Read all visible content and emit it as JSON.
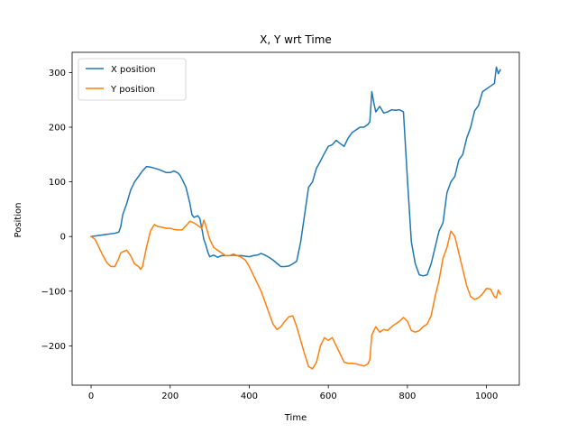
{
  "chart_data": {
    "type": "line",
    "title": "X, Y wrt Time",
    "xlabel": "Time",
    "ylabel": "Position",
    "xlim": [
      -48,
      1083
    ],
    "ylim": [
      -272,
      337
    ],
    "xticks": [
      0,
      200,
      400,
      600,
      800,
      1000
    ],
    "yticks": [
      -200,
      -100,
      0,
      100,
      200,
      300
    ],
    "xtick_labels": [
      "0",
      "200",
      "400",
      "600",
      "800",
      "1000"
    ],
    "ytick_labels": [
      "−200",
      "−100",
      "0",
      "100",
      "200",
      "300"
    ],
    "grid": false,
    "legend": "top-left",
    "series": [
      {
        "name": "X position",
        "color": "#1f77b4",
        "x": [
          0,
          20,
          40,
          60,
          70,
          75,
          80,
          90,
          100,
          110,
          120,
          130,
          140,
          150,
          160,
          170,
          180,
          190,
          200,
          210,
          220,
          225,
          230,
          240,
          250,
          255,
          260,
          270,
          275,
          280,
          285,
          290,
          295,
          300,
          310,
          320,
          330,
          340,
          350,
          360,
          370,
          380,
          390,
          400,
          410,
          420,
          430,
          440,
          450,
          460,
          470,
          480,
          490,
          500,
          510,
          520,
          530,
          540,
          550,
          560,
          570,
          580,
          590,
          600,
          610,
          620,
          630,
          640,
          650,
          660,
          670,
          680,
          690,
          700,
          705,
          710,
          715,
          720,
          730,
          740,
          750,
          760,
          770,
          780,
          790,
          800,
          810,
          820,
          830,
          840,
          850,
          860,
          870,
          880,
          890,
          900,
          910,
          920,
          930,
          940,
          950,
          960,
          970,
          980,
          990,
          1000,
          1010,
          1020,
          1025,
          1030,
          1035
        ],
        "y": [
          0,
          2,
          4,
          6,
          8,
          18,
          40,
          60,
          85,
          100,
          110,
          120,
          128,
          127,
          125,
          123,
          120,
          117,
          117,
          120,
          116,
          112,
          105,
          90,
          60,
          40,
          35,
          38,
          33,
          15,
          -5,
          -15,
          -28,
          -37,
          -34,
          -38,
          -35,
          -35,
          -35,
          -34,
          -35,
          -35,
          -36,
          -37,
          -35,
          -34,
          -31,
          -34,
          -38,
          -43,
          -49,
          -55,
          -55,
          -54,
          -50,
          -45,
          -10,
          40,
          90,
          100,
          125,
          138,
          152,
          165,
          168,
          176,
          170,
          165,
          180,
          190,
          195,
          200,
          200,
          205,
          210,
          265,
          245,
          228,
          238,
          226,
          228,
          232,
          231,
          232,
          228,
          105,
          -10,
          -50,
          -70,
          -72,
          -70,
          -50,
          -20,
          10,
          25,
          80,
          100,
          110,
          140,
          150,
          180,
          200,
          230,
          240,
          265,
          270,
          275,
          280,
          310,
          298,
          305
        ]
      },
      {
        "name": "Y position",
        "color": "#ff7f0e",
        "x": [
          0,
          10,
          20,
          30,
          40,
          50,
          60,
          70,
          75,
          80,
          90,
          100,
          110,
          120,
          125,
          130,
          140,
          150,
          160,
          170,
          180,
          190,
          200,
          210,
          220,
          230,
          240,
          250,
          260,
          270,
          280,
          285,
          290,
          300,
          310,
          320,
          330,
          340,
          350,
          360,
          370,
          380,
          390,
          400,
          410,
          420,
          430,
          440,
          450,
          460,
          470,
          480,
          490,
          500,
          510,
          520,
          530,
          540,
          550,
          560,
          570,
          580,
          590,
          600,
          610,
          620,
          630,
          640,
          650,
          660,
          670,
          680,
          690,
          700,
          705,
          710,
          720,
          730,
          740,
          750,
          760,
          770,
          780,
          790,
          800,
          810,
          820,
          830,
          840,
          850,
          860,
          870,
          880,
          890,
          900,
          905,
          910,
          920,
          930,
          940,
          950,
          960,
          970,
          980,
          990,
          1000,
          1010,
          1020,
          1025,
          1030,
          1035
        ],
        "y": [
          0,
          -5,
          -20,
          -35,
          -48,
          -55,
          -55,
          -40,
          -30,
          -28,
          -25,
          -35,
          -50,
          -55,
          -60,
          -55,
          -20,
          10,
          22,
          18,
          17,
          15,
          15,
          13,
          12,
          12,
          20,
          28,
          25,
          20,
          15,
          30,
          20,
          -5,
          -20,
          -25,
          -30,
          -35,
          -35,
          -32,
          -35,
          -38,
          -43,
          -55,
          -70,
          -85,
          -100,
          -120,
          -140,
          -160,
          -170,
          -165,
          -155,
          -147,
          -145,
          -165,
          -190,
          -215,
          -238,
          -242,
          -230,
          -200,
          -185,
          -190,
          -185,
          -200,
          -215,
          -230,
          -232,
          -232,
          -233,
          -235,
          -237,
          -233,
          -225,
          -180,
          -165,
          -175,
          -170,
          -172,
          -165,
          -160,
          -155,
          -148,
          -155,
          -172,
          -175,
          -172,
          -165,
          -160,
          -145,
          -110,
          -80,
          -40,
          -20,
          -5,
          10,
          0,
          -30,
          -60,
          -90,
          -110,
          -115,
          -112,
          -105,
          -95,
          -96,
          -110,
          -112,
          -98,
          -105
        ]
      }
    ]
  }
}
